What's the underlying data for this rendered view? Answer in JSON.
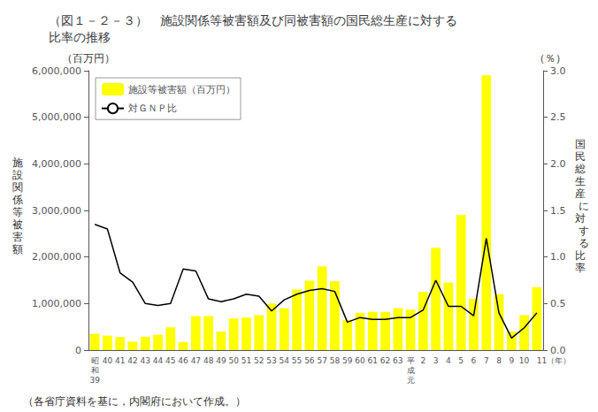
{
  "chart_data": {
    "type": "bar",
    "title": "（図１－２－３）　施設関係等被害額及び同被害額の国民総生産に対する\n比率の推移",
    "ylabel": "施\n設\n関\n係\n等\n被\n害\n額",
    "y2label": "国\n民\n総\n生\n産\n に\n対\n す\n る\n比\n率",
    "annotations": [
      "（百万円）",
      "（％）",
      "（各省庁資料を基に，内閣府において作成。）"
    ],
    "categories": [
      "昭\n和\n39",
      "40",
      "41",
      "42",
      "43",
      "44",
      "45",
      "46",
      "47",
      "48",
      "49",
      "50",
      "51",
      "52",
      "53",
      "54",
      "55",
      "56",
      "57",
      "58",
      "59",
      "60",
      "61",
      "62",
      "63",
      "平\n成\n元",
      "2",
      "3",
      "4",
      "5",
      "6",
      "7",
      "8",
      "9",
      "10",
      "11（年）"
    ],
    "series": [
      {
        "name": "施設等被害額（百万円）",
        "type": "bar",
        "color": "#FFFF00",
        "values": [
          350000,
          310000,
          280000,
          180000,
          290000,
          330000,
          490000,
          170000,
          730000,
          730000,
          400000,
          680000,
          700000,
          750000,
          1000000,
          900000,
          1300000,
          1490000,
          1800000,
          1480000,
          650000,
          800000,
          820000,
          820000,
          900000,
          870000,
          1250000,
          2200000,
          1450000,
          2900000,
          1100000,
          5900000,
          1200000,
          400000,
          750000,
          1350000
        ]
      },
      {
        "name": "対ＧＮＰ比",
        "type": "line",
        "color": "#000000",
        "axis": "y2",
        "marker": "none",
        "values": [
          1.35,
          1.3,
          0.83,
          0.73,
          0.5,
          0.48,
          0.5,
          0.87,
          0.85,
          0.55,
          0.52,
          0.55,
          0.6,
          0.58,
          0.42,
          0.54,
          0.6,
          0.64,
          0.66,
          0.63,
          0.3,
          0.35,
          0.33,
          0.33,
          0.35,
          0.35,
          0.43,
          0.75,
          0.47,
          0.47,
          0.37,
          1.2,
          0.4,
          0.13,
          0.24,
          0.4
        ]
      }
    ],
    "ylim": [
      0,
      6000000
    ],
    "yticks": [
      0,
      {
        "value": 1000000,
        "label": "1,000,000"
      },
      {
        "value": 2000000,
        "label": "2,000,000"
      },
      {
        "value": 3000000,
        "label": "3,000,000"
      },
      {
        "value": 4000000,
        "label": "4,000,000"
      },
      {
        "value": 5000000,
        "label": "5,000,000"
      },
      {
        "value": 6000000,
        "label": "6,000,000"
      }
    ],
    "y2lim": [
      0,
      3
    ],
    "y2ticks": [
      {
        "value": 0,
        "label": "0.0"
      },
      0.5,
      {
        "value": 1,
        "label": "1.0"
      },
      1.5,
      {
        "value": 2,
        "label": "2.0"
      },
      2.5,
      {
        "value": 3,
        "label": "3.0"
      }
    ],
    "grid": false,
    "legend": "upper left"
  }
}
